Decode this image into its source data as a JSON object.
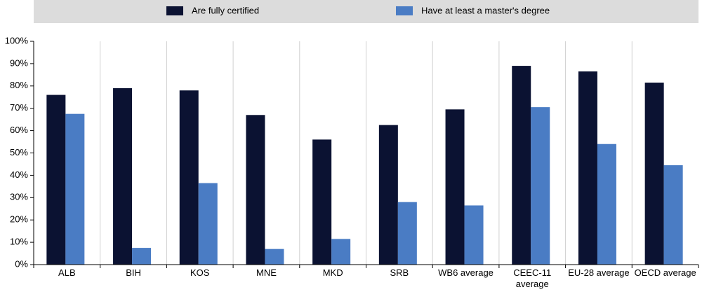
{
  "chart_data": {
    "type": "bar",
    "categories": [
      "ALB",
      "BIH",
      "KOS",
      "MNE",
      "MKD",
      "SRB",
      "WB6 average",
      "CEEC-11 average",
      "EU-28 average",
      "OECD average"
    ],
    "series": [
      {
        "name": "Are fully certified",
        "color": "#0b1232",
        "values": [
          76,
          79,
          78,
          67,
          56,
          62.5,
          69.5,
          89,
          86.5,
          81.5
        ]
      },
      {
        "name": "Have at least a master's degree",
        "color": "#4a7cc4",
        "values": [
          67.5,
          7.5,
          36.5,
          7,
          11.5,
          28,
          26.5,
          70.5,
          54,
          44.5
        ]
      }
    ],
    "ylim": [
      0,
      100
    ],
    "yticks": [
      {
        "value": 0,
        "label": "0%"
      },
      {
        "value": 10,
        "label": "10%"
      },
      {
        "value": 20,
        "label": "20%"
      },
      {
        "value": 30,
        "label": "30%"
      },
      {
        "value": 40,
        "label": "40%"
      },
      {
        "value": 50,
        "label": "50%"
      },
      {
        "value": 60,
        "label": "60%"
      },
      {
        "value": 70,
        "label": "70%"
      },
      {
        "value": 80,
        "label": "80%"
      },
      {
        "value": 90,
        "label": "90%"
      },
      {
        "value": 100,
        "label": "100%"
      }
    ],
    "legend": "top"
  }
}
